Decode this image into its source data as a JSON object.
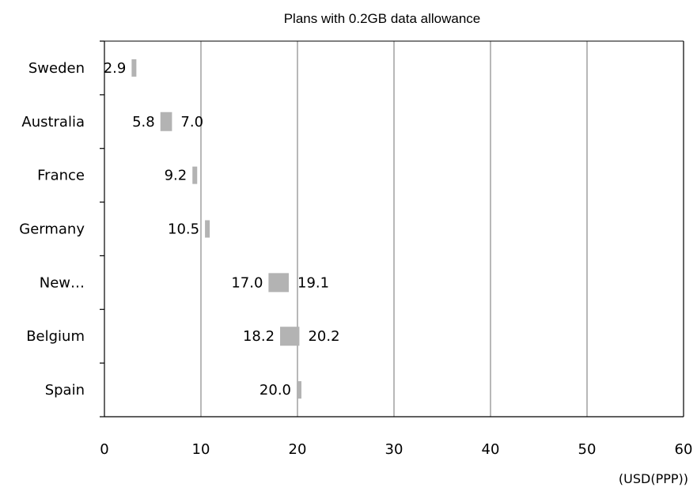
{
  "chart_data": {
    "type": "bar",
    "title": "Plans with 0.2GB data allowance",
    "unit_label": "(USD(PPP))",
    "categories": [
      "Sweden",
      "Australia",
      "France",
      "Germany",
      "New…",
      "Belgium",
      "Spain"
    ],
    "series": [
      {
        "values": [
          2.9,
          5.8,
          9.2,
          10.5,
          17.0,
          18.2,
          20.0
        ]
      },
      {
        "values": [
          null,
          7.0,
          null,
          null,
          19.1,
          20.2,
          null
        ]
      }
    ],
    "data_labels": [
      {
        "low": "2.9",
        "high": ""
      },
      {
        "low": "5.8",
        "high": "7.0"
      },
      {
        "low": "9.2",
        "high": ""
      },
      {
        "low": "10.5",
        "high": ""
      },
      {
        "low": "17.0",
        "high": "19.1"
      },
      {
        "low": "18.2",
        "high": "20.2"
      },
      {
        "low": "20.0",
        "high": ""
      }
    ],
    "xlim": [
      0,
      60
    ],
    "xticks": [
      0,
      10,
      20,
      30,
      40,
      50,
      60
    ],
    "grid": "vertical",
    "bar_color": "#b3b3b3",
    "grid_color": "#a6a6a6"
  }
}
